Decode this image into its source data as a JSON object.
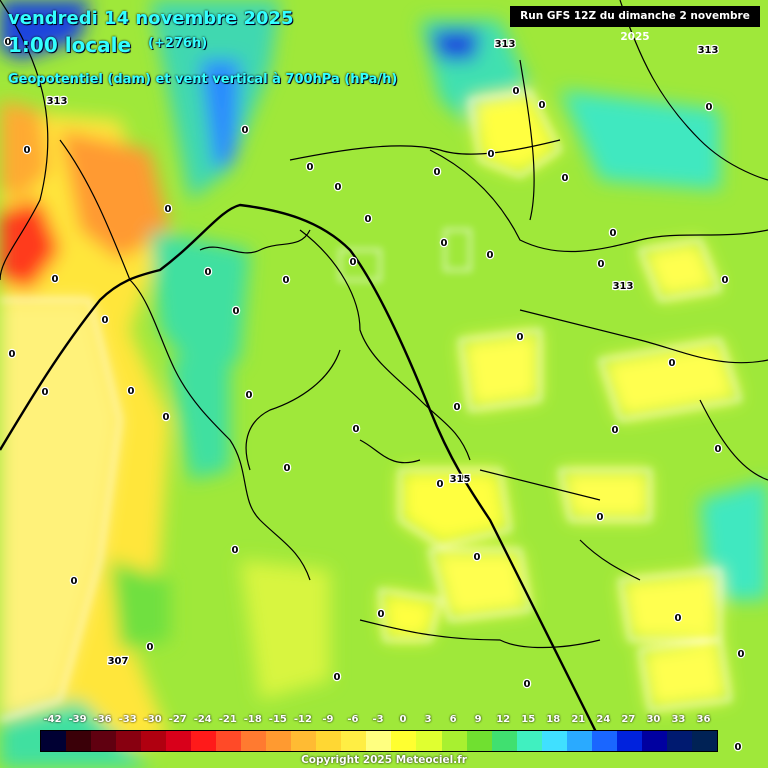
{
  "header": {
    "date": "vendredi 14 novembre 2025",
    "time": "1:00 locale",
    "lead": "(+276h)",
    "parameter": "Geopotentiel (dam) et vent vertical à 700hPa (hPa/h)",
    "run": "Run GFS 12Z du dimanche 2 novembre 2025"
  },
  "legend": {
    "labels": [
      "-42",
      "-39",
      "-36",
      "-33",
      "-30",
      "-27",
      "-24",
      "-21",
      "-18",
      "-15",
      "-12",
      "-9",
      "-6",
      "-3",
      "0",
      "3",
      "6",
      "9",
      "12",
      "15",
      "18",
      "21",
      "24",
      "27",
      "30",
      "33",
      "36"
    ],
    "colors": [
      "#000033",
      "#3a0008",
      "#600010",
      "#880010",
      "#b00010",
      "#d8001a",
      "#ff1a1a",
      "#ff4a28",
      "#ff7a30",
      "#ff9a30",
      "#ffbb33",
      "#ffd733",
      "#ffee44",
      "#ffff80",
      "#ffff30",
      "#e0ff30",
      "#a8f030",
      "#70e030",
      "#40e070",
      "#40f0c0",
      "#40e0ff",
      "#2aaaff",
      "#1a66ff",
      "#0022dd",
      "#0000a0",
      "#001a70",
      "#002255"
    ]
  },
  "map": {
    "geopotential_labels": [
      "313",
      "313",
      "313",
      "313",
      "315",
      "307"
    ],
    "vertical_wind_labels": [
      "0",
      "0",
      "0",
      "0",
      "0",
      "0",
      "0",
      "0",
      "0",
      "0",
      "0",
      "0",
      "0",
      "0",
      "0",
      "0",
      "0",
      "0",
      "0",
      "0",
      "0",
      "0",
      "0",
      "0",
      "0",
      "0",
      "0",
      "0",
      "0",
      "0",
      "0",
      "0",
      "0",
      "0",
      "0",
      "0",
      "0",
      "0",
      "0",
      "0",
      "0",
      "0",
      "0",
      "0",
      "0",
      "0",
      "0",
      "0"
    ]
  },
  "copyright": "Copyright 2025 Meteociel.fr"
}
